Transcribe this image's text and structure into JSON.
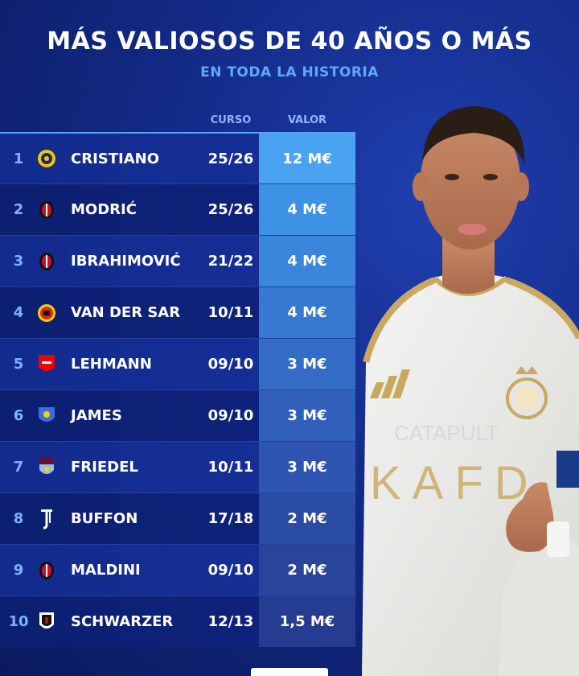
{
  "header": {
    "title": "MÁS VALIOSOS DE 40 AÑOS O MÁS",
    "subtitle": "EN TODA LA HISTORIA"
  },
  "columns": {
    "curso": "CURSO",
    "valor": "VALOR"
  },
  "rows": [
    {
      "rank": "1",
      "crest": "al-nassr-crest-icon",
      "name": "CRISTIANO",
      "season": "25/26",
      "value": "12 M€"
    },
    {
      "rank": "2",
      "crest": "ac-milan-crest-icon",
      "name": "MODRIĆ",
      "season": "25/26",
      "value": "4 M€"
    },
    {
      "rank": "3",
      "crest": "ac-milan-crest-icon",
      "name": "IBRAHIMOVIĆ",
      "season": "21/22",
      "value": "4 M€"
    },
    {
      "rank": "4",
      "crest": "manchester-united-crest-icon",
      "name": "VAN DER SAR",
      "season": "10/11",
      "value": "4 M€"
    },
    {
      "rank": "5",
      "crest": "arsenal-crest-icon",
      "name": "LEHMANN",
      "season": "09/10",
      "value": "3 M€"
    },
    {
      "rank": "6",
      "crest": "portsmouth-crest-icon",
      "name": "JAMES",
      "season": "09/10",
      "value": "3 M€"
    },
    {
      "rank": "7",
      "crest": "aston-villa-crest-icon",
      "name": "FRIEDEL",
      "season": "10/11",
      "value": "3 M€"
    },
    {
      "rank": "8",
      "crest": "juventus-crest-icon",
      "name": "BUFFON",
      "season": "17/18",
      "value": "2 M€"
    },
    {
      "rank": "9",
      "crest": "ac-milan-crest-icon",
      "name": "MALDINI",
      "season": "09/10",
      "value": "2 M€"
    },
    {
      "rank": "10",
      "crest": "fulham-crest-icon",
      "name": "SCHWARZER",
      "season": "12/13",
      "value": "1,5 M€"
    }
  ],
  "jersey": {
    "sponsor_line1": "CATAPULT",
    "sponsor_line2": "KAFD"
  },
  "colors": {
    "background": "#132a86",
    "accent": "#5fa8ff",
    "value_cell_top": "#4aa3f0"
  }
}
